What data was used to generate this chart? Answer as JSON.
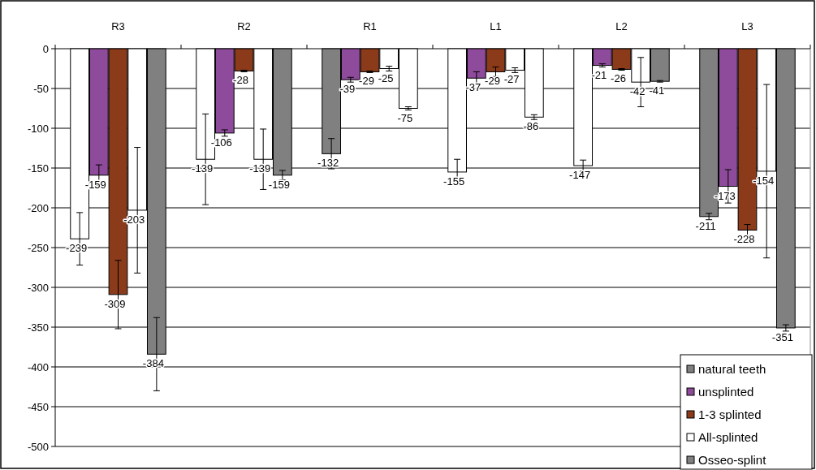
{
  "chart_data": {
    "type": "bar",
    "categories": [
      "R3",
      "R2",
      "R1",
      "L1",
      "L2",
      "L3"
    ],
    "series": [
      {
        "name": "natural teeth",
        "color": "#808080",
        "colors": [
          "#ffffff",
          "#ffffff",
          "#808080",
          "#ffffff",
          "#ffffff",
          "#808080"
        ],
        "values": [
          -239,
          -139,
          -132,
          -155,
          -147,
          -211
        ],
        "errors": [
          33,
          57,
          19,
          16,
          7,
          4
        ]
      },
      {
        "name": "unsplinted",
        "color": "#8e4b9b",
        "colors": [
          "#8e4b9b",
          "#8e4b9b",
          "#8e4b9b",
          "#8e4b9b",
          "#8e4b9b",
          "#8e4b9b"
        ],
        "values": [
          -159,
          -106,
          -39,
          -37,
          -21,
          -173
        ],
        "errors": [
          13,
          4,
          3,
          8,
          2,
          21
        ]
      },
      {
        "name": "1-3 splinted",
        "color": "#8b3a1a",
        "colors": [
          "#8b3a1a",
          "#8b3a1a",
          "#8b3a1a",
          "#8b3a1a",
          "#8b3a1a",
          "#8b3a1a"
        ],
        "values": [
          -309,
          -28,
          -29,
          -29,
          -26,
          -228
        ],
        "errors": [
          43,
          1,
          1,
          6,
          1,
          7
        ]
      },
      {
        "name": "All-splinted",
        "color": "#ffffff",
        "colors": [
          "#ffffff",
          "#ffffff",
          "#ffffff",
          "#ffffff",
          "#ffffff",
          "#ffffff"
        ],
        "values": [
          -203,
          -139,
          -25,
          -27,
          -42,
          -154
        ],
        "errors": [
          79,
          38,
          3,
          3,
          31,
          109
        ]
      },
      {
        "name": "Osseo-splint",
        "color": "#808080",
        "colors": [
          "#808080",
          "#808080",
          "#ffffff",
          "#ffffff",
          "#808080",
          "#808080"
        ],
        "values": [
          -384,
          -159,
          -75,
          -86,
          -41,
          -351
        ],
        "errors": [
          46,
          6,
          2,
          3,
          1,
          4
        ]
      }
    ],
    "ylim": [
      -500,
      0
    ],
    "yticks": [
      0,
      -50,
      -100,
      -150,
      -200,
      -250,
      -300,
      -350,
      -400,
      -450,
      -500
    ],
    "grid": "y",
    "legend": "bottom right",
    "data_labels": true
  }
}
